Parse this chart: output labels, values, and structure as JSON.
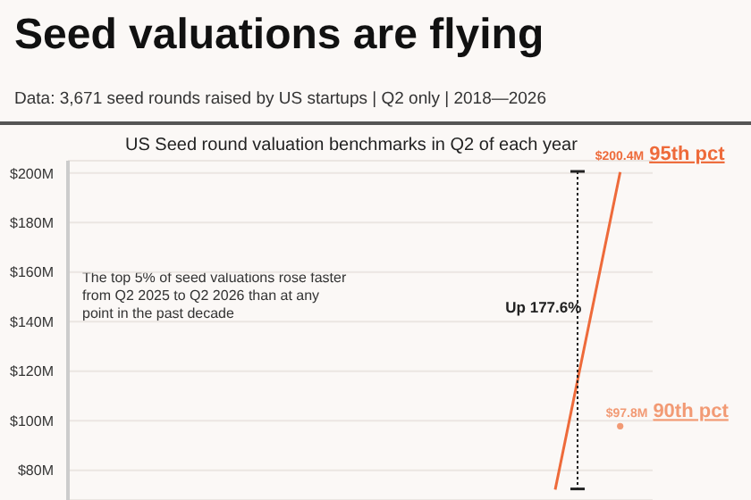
{
  "chart_data": {
    "type": "line",
    "title": "Seed valuations are flying",
    "subtitle": "Data: 3,671 seed rounds raised by US startups | Q2 only | 2018—2026",
    "annotations": [
      "US Seed round valuation benchmarks in Q2 of each year",
      "The top 5% of seed valuations rose faster from Q2 2025 to Q2 2026 than at any point in the past decade",
      "Up 177.6%"
    ],
    "categories": [
      null,
      null,
      null,
      null,
      null,
      null,
      null,
      null,
      null
    ],
    "series": [
      {
        "name": "95th pct",
        "color": "#ee6a3a",
        "values": [
          null,
          null,
          null,
          null,
          null,
          null,
          null,
          72.2,
          200.4
        ],
        "value_labels": [
          null,
          null,
          null,
          null,
          null,
          null,
          null,
          null,
          "$200.4M"
        ]
      },
      {
        "name": "90th pct",
        "color": "#f29a74",
        "marker": "circle",
        "values": [
          null,
          null,
          null,
          null,
          null,
          null,
          null,
          null,
          97.8
        ],
        "value_labels": [
          null,
          null,
          null,
          null,
          null,
          null,
          null,
          null,
          "$97.8M"
        ]
      }
    ],
    "ylim": [
      68,
      205
    ],
    "yticks": [
      {
        "value": 80,
        "label": "$80M"
      },
      {
        "value": 100,
        "label": "$100M"
      },
      {
        "value": 120,
        "label": "$120M"
      },
      {
        "value": 140,
        "label": "$140M"
      },
      {
        "value": 160,
        "label": "$160M"
      },
      {
        "value": 180,
        "label": "$180M"
      },
      {
        "value": 200,
        "label": "$200M"
      }
    ],
    "grid": "y",
    "marker": "none",
    "legend": false
  }
}
